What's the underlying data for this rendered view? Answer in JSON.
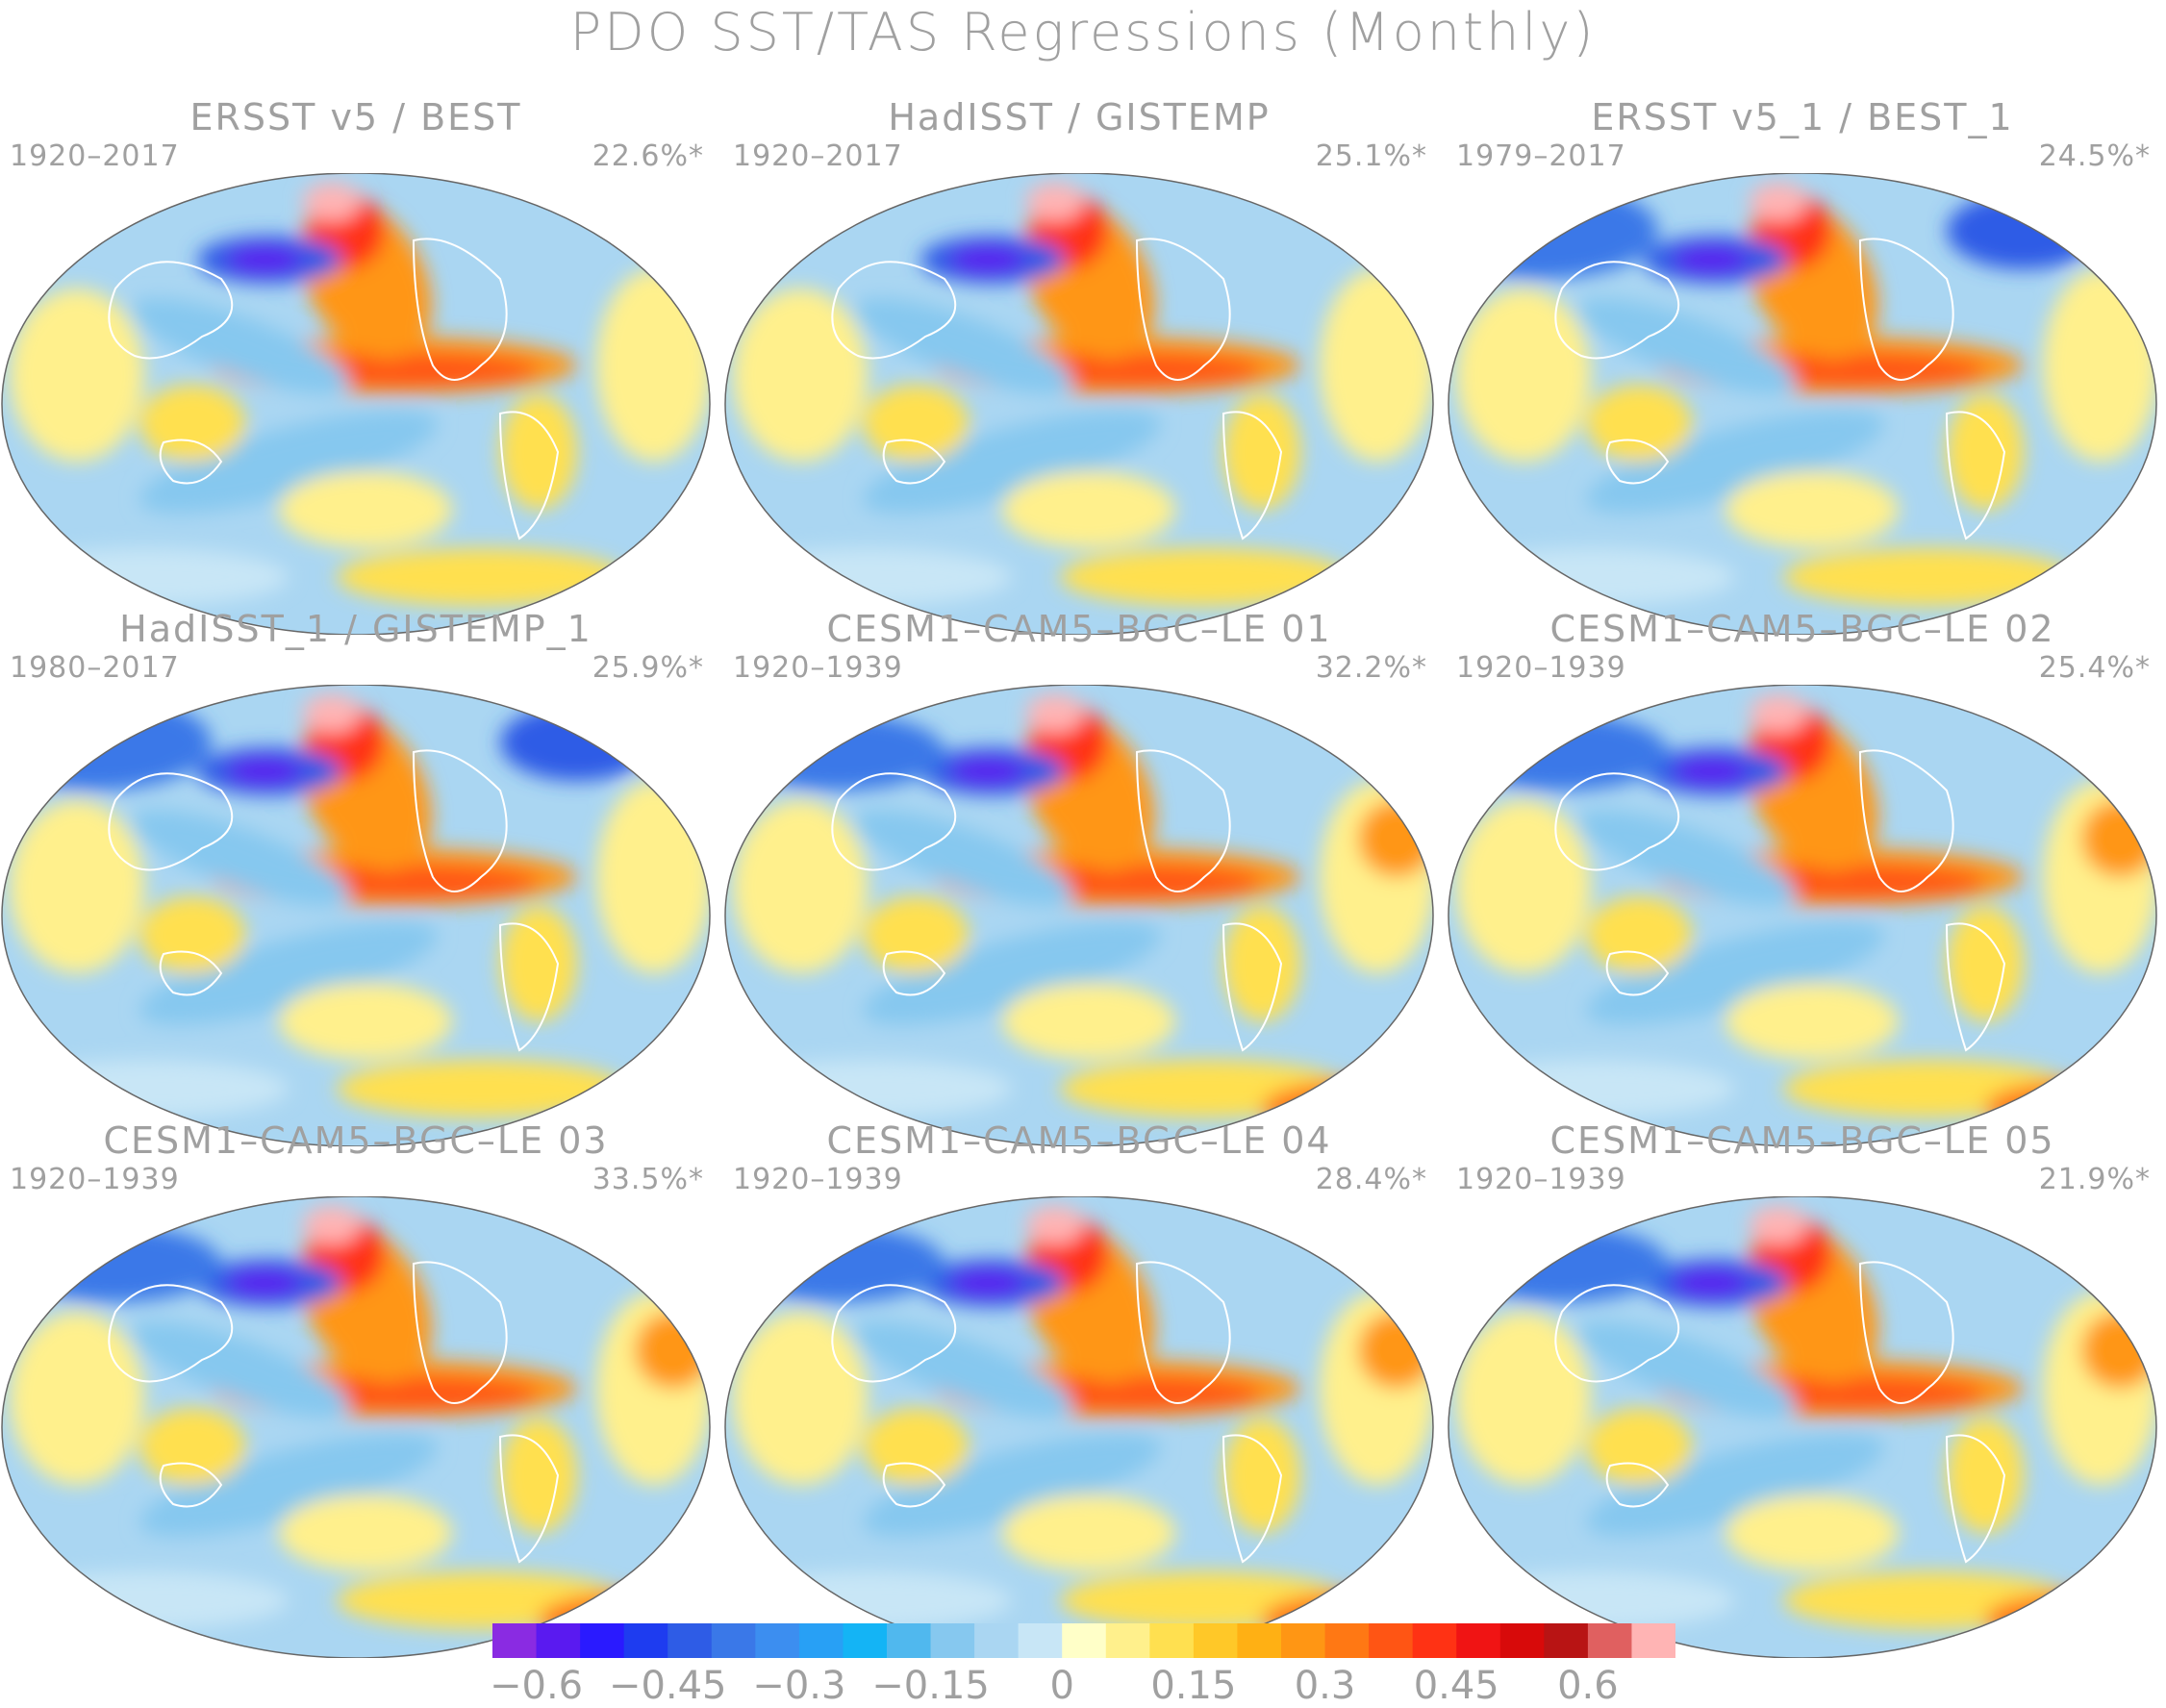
{
  "figure": {
    "title": "PDO SST/TAS Regressions (Monthly)"
  },
  "panels": [
    {
      "title": "ERSST v5 / BEST",
      "period": "1920–2017",
      "variance": "22.6%*",
      "variant": 0
    },
    {
      "title": "HadISST / GISTEMP",
      "period": "1920–2017",
      "variance": "25.1%*",
      "variant": 1
    },
    {
      "title": "ERSST v5_1 / BEST_1",
      "period": "1979–2017",
      "variance": "24.5%*",
      "variant": 2
    },
    {
      "title": "HadISST_1 / GISTEMP_1",
      "period": "1980–2017",
      "variance": "25.9%*",
      "variant": 3
    },
    {
      "title": "CESM1–CAM5–BGC–LE 01",
      "period": "1920–1939",
      "variance": "32.2%*",
      "variant": 4
    },
    {
      "title": "CESM1–CAM5–BGC–LE 02",
      "period": "1920–1939",
      "variance": "25.4%*",
      "variant": 5
    },
    {
      "title": "CESM1–CAM5–BGC–LE 03",
      "period": "1920–1939",
      "variance": "33.5%*",
      "variant": 6
    },
    {
      "title": "CESM1–CAM5–BGC–LE 04",
      "period": "1920–1939",
      "variance": "28.4%*",
      "variant": 7
    },
    {
      "title": "CESM1–CAM5–BGC–LE 05",
      "period": "1920–1939",
      "variance": "21.9%*",
      "variant": 8
    }
  ],
  "colorbar": {
    "colors": [
      "#8a2be2",
      "#5a1af0",
      "#2a1aff",
      "#1e3cf0",
      "#2e5ce6",
      "#3a78e8",
      "#3c8ef0",
      "#28a0f5",
      "#14b4f5",
      "#50b8ee",
      "#86c8ef",
      "#aad6f2",
      "#c8e6f6",
      "#ffffc8",
      "#fff08c",
      "#ffe050",
      "#ffc828",
      "#ffb014",
      "#ff9614",
      "#ff7814",
      "#ff5514",
      "#ff3214",
      "#f01414",
      "#d80a0a",
      "#b81414",
      "#e06060",
      "#ffb4b4"
    ],
    "tick_labels": [
      "−0.6",
      "−0.45",
      "−0.3",
      "−0.15",
      "0",
      "0.15",
      "0.3",
      "0.45",
      "0.6"
    ],
    "tick_values": [
      -0.6,
      -0.45,
      -0.3,
      -0.15,
      0,
      0.15,
      0.3,
      0.45,
      0.6
    ]
  }
}
